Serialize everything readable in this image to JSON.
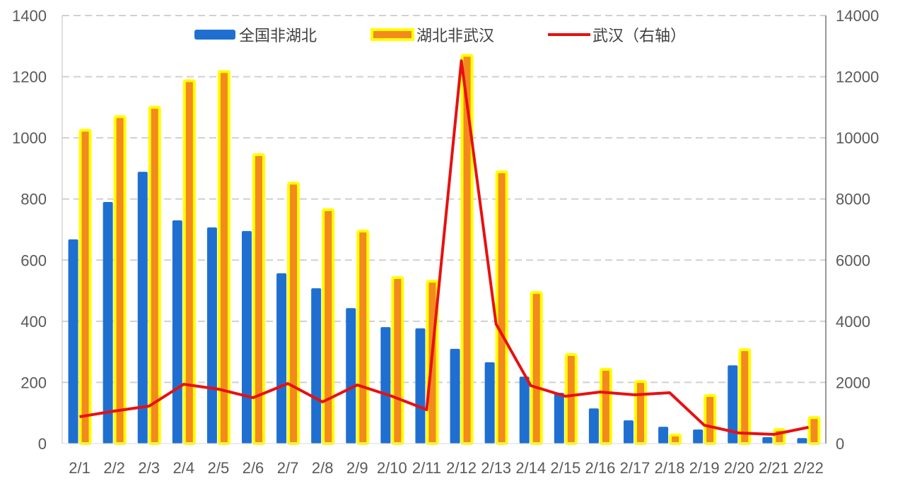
{
  "chart_data": {
    "type": "bar+line",
    "categories": [
      "2/1",
      "2/2",
      "2/3",
      "2/4",
      "2/5",
      "2/6",
      "2/7",
      "2/8",
      "2/9",
      "2/10",
      "2/11",
      "2/12",
      "2/13",
      "2/14",
      "2/15",
      "2/16",
      "2/17",
      "2/18",
      "2/19",
      "2/20",
      "2/21",
      "2/22"
    ],
    "series": [
      {
        "name": "全国非湖北",
        "type": "bar",
        "axis": "left",
        "color": "#1f6fd1",
        "values": [
          668,
          790,
          889,
          730,
          707,
          695,
          557,
          508,
          443,
          381,
          377,
          310,
          266,
          219,
          166,
          115,
          76,
          55,
          46,
          256,
          21,
          18
        ]
      },
      {
        "name": "湖北非武汉",
        "type": "bar",
        "axis": "left",
        "color": "#f28a1e",
        "outline": "#ffff00",
        "values": [
          1025,
          1069,
          1100,
          1187,
          1217,
          945,
          852,
          765,
          695,
          543,
          531,
          1270,
          889,
          494,
          291,
          243,
          203,
          28,
          157,
          307,
          46,
          85
        ]
      },
      {
        "name": "武汉（右轴）",
        "type": "line",
        "axis": "right",
        "color": "#e81010",
        "values": [
          878,
          1063,
          1224,
          1940,
          1779,
          1501,
          1963,
          1363,
          1917,
          1548,
          1109,
          12520,
          3910,
          1894,
          1548,
          1686,
          1594,
          1663,
          600,
          346,
          300,
          531
        ]
      }
    ],
    "left_axis": {
      "ylim": [
        0,
        1400
      ],
      "ticks": [
        "0",
        "200",
        "400",
        "600",
        "800",
        "1000",
        "1200",
        "1400"
      ]
    },
    "right_axis": {
      "ylim": [
        0,
        14000
      ],
      "ticks": [
        "0",
        "2000",
        "4000",
        "6000",
        "8000",
        "10000",
        "12000",
        "14000"
      ]
    },
    "grid": true,
    "grid_style": "dashed",
    "legend_position": "top"
  }
}
